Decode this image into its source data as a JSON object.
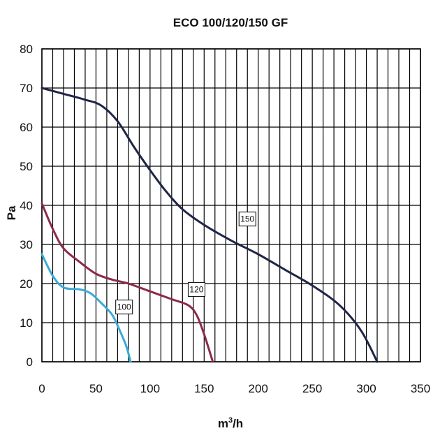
{
  "chart_data": {
    "type": "line",
    "title": "ECO 100/120/150 GF",
    "xlabel_base": "m",
    "xlabel_sup": "3",
    "xlabel_tail": "/h",
    "ylabel": "Pa",
    "xlim": [
      0,
      350
    ],
    "ylim": [
      0,
      80
    ],
    "x_major_ticks": [
      0,
      50,
      100,
      150,
      200,
      250,
      300,
      350
    ],
    "y_major_ticks": [
      0,
      10,
      20,
      30,
      40,
      50,
      60,
      70,
      80
    ],
    "x_grid_step": 10,
    "y_grid_step": 10,
    "grid": true,
    "series": [
      {
        "name": "150",
        "color": "#1f2547",
        "label_at": [
          190,
          36.5
        ],
        "points": [
          [
            0,
            70
          ],
          [
            20,
            68.5
          ],
          [
            40,
            67
          ],
          [
            55,
            65.5
          ],
          [
            70,
            61.5
          ],
          [
            85,
            55
          ],
          [
            100,
            49
          ],
          [
            115,
            43.5
          ],
          [
            130,
            39
          ],
          [
            150,
            35
          ],
          [
            175,
            31
          ],
          [
            200,
            27.5
          ],
          [
            225,
            23.5
          ],
          [
            250,
            19.5
          ],
          [
            275,
            14.5
          ],
          [
            295,
            8
          ],
          [
            310,
            0
          ]
        ]
      },
      {
        "name": "120",
        "color": "#8b2a4e",
        "label_at": [
          143,
          18.5
        ],
        "points": [
          [
            0,
            40.5
          ],
          [
            10,
            34
          ],
          [
            20,
            29
          ],
          [
            35,
            25.5
          ],
          [
            50,
            22.5
          ],
          [
            65,
            21
          ],
          [
            80,
            20
          ],
          [
            100,
            18
          ],
          [
            120,
            16
          ],
          [
            135,
            14.5
          ],
          [
            143,
            12
          ],
          [
            150,
            7
          ],
          [
            158,
            0
          ]
        ]
      },
      {
        "name": "100",
        "color": "#3aaad6",
        "label_at": [
          76,
          14
        ],
        "points": [
          [
            0,
            27.5
          ],
          [
            10,
            22
          ],
          [
            20,
            19
          ],
          [
            35,
            18.5
          ],
          [
            45,
            17.5
          ],
          [
            55,
            15
          ],
          [
            65,
            12
          ],
          [
            72,
            8
          ],
          [
            78,
            4
          ],
          [
            82,
            0
          ]
        ]
      }
    ]
  }
}
